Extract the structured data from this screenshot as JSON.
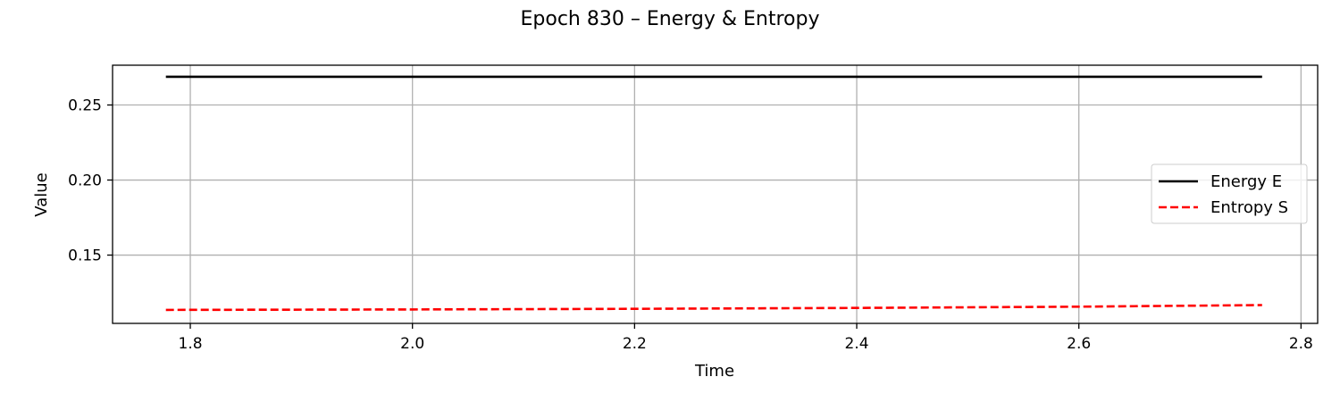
{
  "chart_data": {
    "type": "line",
    "title": "Epoch 830 – Energy & Entropy",
    "xlabel": "Time",
    "ylabel": "Value",
    "xlim": [
      1.73,
      2.815
    ],
    "ylim": [
      0.1045,
      0.2765
    ],
    "xticks": [
      1.8,
      2.0,
      2.2,
      2.4,
      2.6,
      2.8
    ],
    "xtick_labels": [
      "1.8",
      "2.0",
      "2.2",
      "2.4",
      "2.6",
      "2.8"
    ],
    "yticks": [
      0.15,
      0.2,
      0.25
    ],
    "ytick_labels": [
      "0.15",
      "0.20",
      "0.25"
    ],
    "grid": true,
    "legend_position": "center-right",
    "series": [
      {
        "name": "Energy E",
        "color": "#000000",
        "style": "solid",
        "x": [
          1.778,
          2.0,
          2.2,
          2.4,
          2.6,
          2.765
        ],
        "y": [
          0.2688,
          0.2688,
          0.2688,
          0.2688,
          0.2688,
          0.2688
        ]
      },
      {
        "name": "Entropy S",
        "color": "#ff0000",
        "style": "dashed",
        "x": [
          1.778,
          2.0,
          2.2,
          2.4,
          2.6,
          2.765
        ],
        "y": [
          0.1135,
          0.1138,
          0.1142,
          0.1148,
          0.1156,
          0.1167
        ]
      }
    ]
  }
}
